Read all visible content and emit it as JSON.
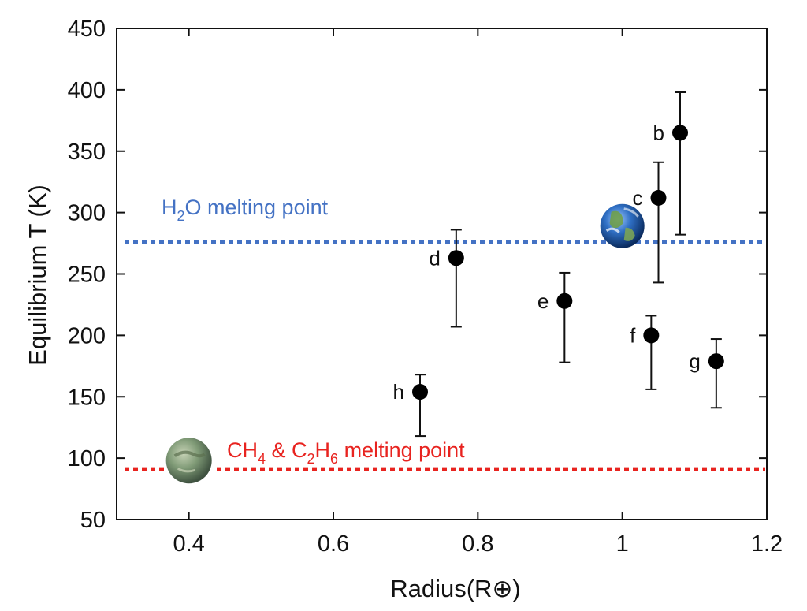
{
  "chart_data": {
    "type": "scatter",
    "title": "",
    "xlabel": "Radius(R⊕)",
    "ylabel": "Equilibrium T (K)",
    "xlim": [
      0.3,
      1.2
    ],
    "ylim": [
      50,
      450
    ],
    "xticks": [
      0.4,
      0.6,
      0.8,
      1,
      1.2
    ],
    "xtick_labels": [
      "0.4",
      "0.6",
      "0.8",
      "1",
      "1.2"
    ],
    "yticks": [
      50,
      100,
      150,
      200,
      250,
      300,
      350,
      400,
      450
    ],
    "ytick_labels": [
      "50",
      "100",
      "150",
      "200",
      "250",
      "300",
      "350",
      "400",
      "450"
    ],
    "grid": false,
    "points": [
      {
        "label": "b",
        "x": 1.08,
        "y": 365,
        "y_low": 282,
        "y_high": 398
      },
      {
        "label": "c",
        "x": 1.05,
        "y": 312,
        "y_low": 243,
        "y_high": 341
      },
      {
        "label": "d",
        "x": 0.77,
        "y": 263,
        "y_low": 207,
        "y_high": 286
      },
      {
        "label": "e",
        "x": 0.92,
        "y": 228,
        "y_low": 178,
        "y_high": 251
      },
      {
        "label": "f",
        "x": 1.04,
        "y": 200,
        "y_low": 156,
        "y_high": 216
      },
      {
        "label": "g",
        "x": 1.13,
        "y": 179,
        "y_low": 141,
        "y_high": 197
      },
      {
        "label": "h",
        "x": 0.72,
        "y": 154,
        "y_low": 118,
        "y_high": 168
      }
    ],
    "reference_lines": [
      {
        "name": "H2O melting point",
        "y": 276,
        "color": "#4472c4",
        "style": "dotted"
      },
      {
        "name": "CH4 & C2H6 melting point",
        "y": 91,
        "color": "#e8231f",
        "style": "dotted"
      }
    ],
    "annotations": [
      {
        "kind": "earth-icon",
        "x": 1.0,
        "y": 289
      },
      {
        "kind": "titan-icon",
        "x": 0.4,
        "y": 98
      }
    ]
  }
}
